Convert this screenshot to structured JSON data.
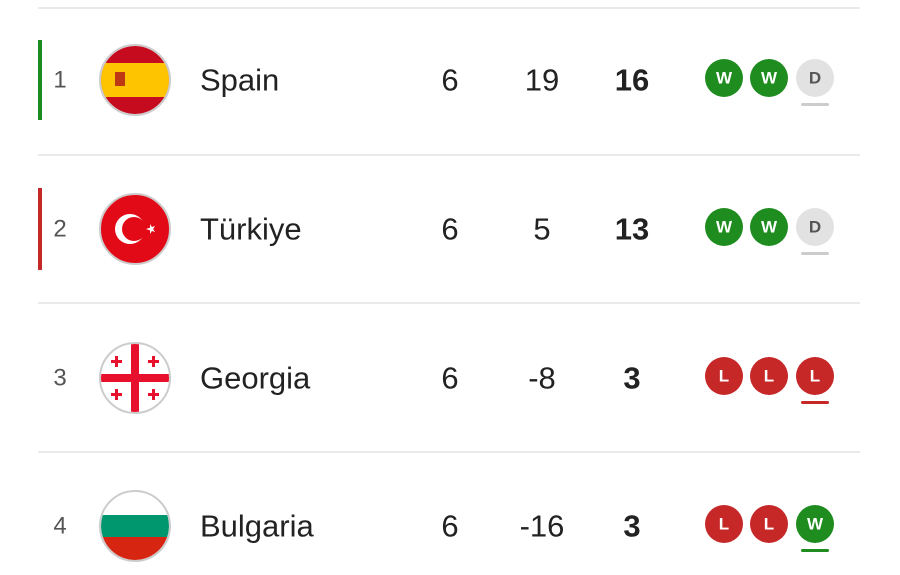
{
  "standings": {
    "rows": [
      {
        "position": 1,
        "team": "Spain",
        "played": 6,
        "goal_difference": 19,
        "points": 16,
        "form": [
          "W",
          "W",
          "D"
        ]
      },
      {
        "position": 2,
        "team": "Türkiye",
        "played": 6,
        "goal_difference": 5,
        "points": 13,
        "form": [
          "W",
          "W",
          "D"
        ]
      },
      {
        "position": 3,
        "team": "Georgia",
        "played": 6,
        "goal_difference": -8,
        "points": 3,
        "form": [
          "L",
          "L",
          "L"
        ]
      },
      {
        "position": 4,
        "team": "Bulgaria",
        "played": 6,
        "goal_difference": -16,
        "points": 3,
        "form": [
          "L",
          "L",
          "W"
        ]
      }
    ]
  }
}
